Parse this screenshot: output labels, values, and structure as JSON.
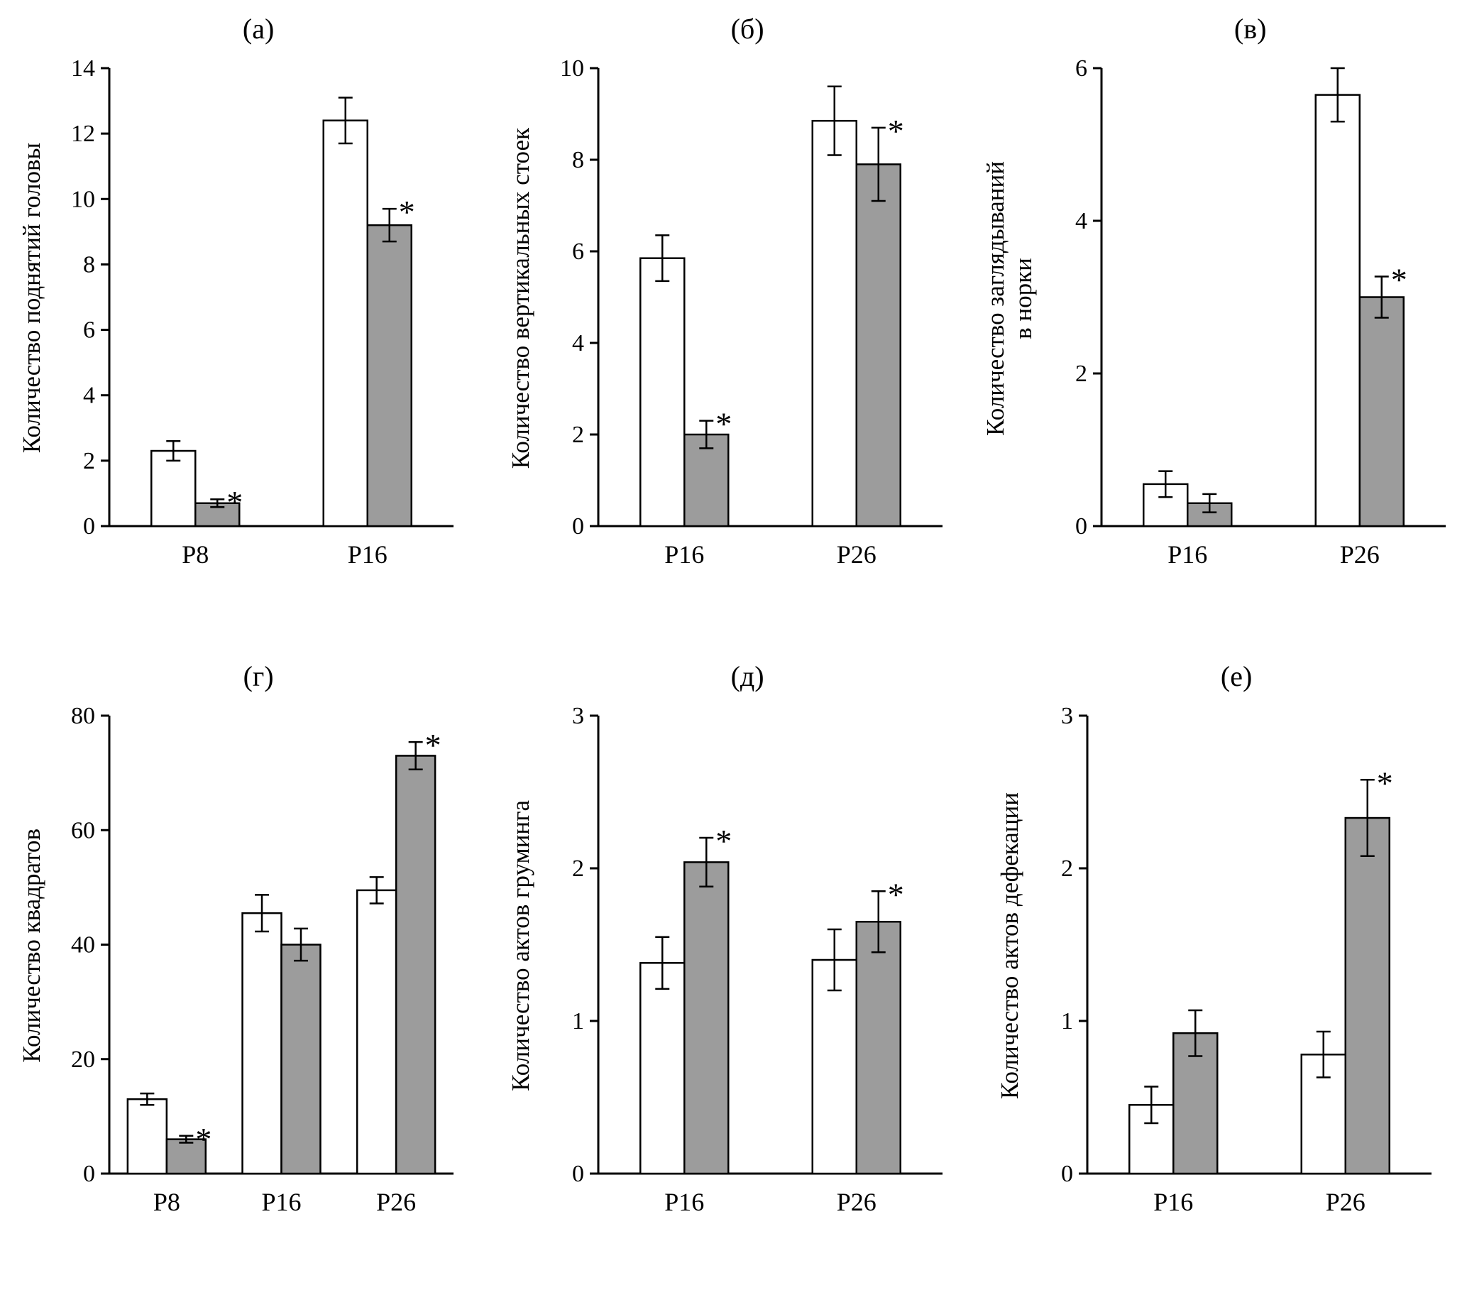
{
  "figure": {
    "background": "#ffffff",
    "axis_color": "#000000",
    "bar_outline": "#000000",
    "significance_marker": "*"
  },
  "chart_data": [
    {
      "id": "a",
      "type": "bar",
      "title": "(а)",
      "ylabel": "Количество поднятий головы",
      "ylim": [
        0,
        14
      ],
      "yticks": [
        0,
        2,
        4,
        6,
        8,
        10,
        12,
        14
      ],
      "categories": [
        "P8",
        "P16"
      ],
      "grid": false,
      "legend": "none",
      "series": [
        {
          "name": "white",
          "color": "#ffffff",
          "values": [
            2.3,
            12.4
          ],
          "errors": [
            0.3,
            0.7
          ],
          "significant": [
            false,
            false
          ]
        },
        {
          "name": "gray",
          "color": "#9c9c9c",
          "values": [
            0.7,
            9.2
          ],
          "errors": [
            0.12,
            0.5
          ],
          "significant": [
            true,
            true
          ]
        }
      ]
    },
    {
      "id": "b",
      "type": "bar",
      "title": "(б)",
      "ylabel": "Количество вертикальных стоек",
      "ylim": [
        0,
        10
      ],
      "yticks": [
        0,
        2,
        4,
        6,
        8,
        10
      ],
      "categories": [
        "P16",
        "P26"
      ],
      "grid": false,
      "legend": "none",
      "series": [
        {
          "name": "white",
          "color": "#ffffff",
          "values": [
            5.85,
            8.85
          ],
          "errors": [
            0.5,
            0.75
          ],
          "significant": [
            false,
            false
          ]
        },
        {
          "name": "gray",
          "color": "#9c9c9c",
          "values": [
            2.0,
            7.9
          ],
          "errors": [
            0.3,
            0.8
          ],
          "significant": [
            true,
            true
          ]
        }
      ]
    },
    {
      "id": "v",
      "type": "bar",
      "title": "(в)",
      "ylabel": "Количество заглядываний\nв норки",
      "ylim": [
        0,
        6
      ],
      "yticks": [
        0,
        2,
        4,
        6
      ],
      "categories": [
        "P16",
        "P26"
      ],
      "grid": false,
      "legend": "none",
      "series": [
        {
          "name": "white",
          "color": "#ffffff",
          "values": [
            0.55,
            5.65
          ],
          "errors": [
            0.17,
            0.35
          ],
          "significant": [
            false,
            false
          ]
        },
        {
          "name": "gray",
          "color": "#9c9c9c",
          "values": [
            0.3,
            3.0
          ],
          "errors": [
            0.12,
            0.27
          ],
          "significant": [
            false,
            true
          ]
        }
      ]
    },
    {
      "id": "g",
      "type": "bar",
      "title": "(г)",
      "ylabel": "Количество квадратов",
      "ylim": [
        0,
        80
      ],
      "yticks": [
        0,
        20,
        40,
        60,
        80
      ],
      "categories": [
        "P8",
        "P16",
        "P26"
      ],
      "grid": false,
      "legend": "none",
      "series": [
        {
          "name": "white",
          "color": "#ffffff",
          "values": [
            13,
            45.5,
            49.5
          ],
          "errors": [
            1,
            3.2,
            2.3
          ],
          "significant": [
            false,
            false,
            false
          ]
        },
        {
          "name": "gray",
          "color": "#9c9c9c",
          "values": [
            6,
            40,
            73
          ],
          "errors": [
            0.6,
            2.8,
            2.4
          ],
          "significant": [
            true,
            false,
            true
          ]
        }
      ]
    },
    {
      "id": "d",
      "type": "bar",
      "title": "(д)",
      "ylabel": "Количество актов груминга",
      "ylim": [
        0,
        3
      ],
      "yticks": [
        0,
        1,
        2,
        3
      ],
      "categories": [
        "P16",
        "P26"
      ],
      "grid": false,
      "legend": "none",
      "series": [
        {
          "name": "white",
          "color": "#ffffff",
          "values": [
            1.38,
            1.4
          ],
          "errors": [
            0.17,
            0.2
          ],
          "significant": [
            false,
            false
          ]
        },
        {
          "name": "gray",
          "color": "#9c9c9c",
          "values": [
            2.04,
            1.65
          ],
          "errors": [
            0.16,
            0.2
          ],
          "significant": [
            true,
            true
          ]
        }
      ]
    },
    {
      "id": "e",
      "type": "bar",
      "title": "(е)",
      "ylabel": "Количество актов дефекации",
      "ylim": [
        0,
        3
      ],
      "yticks": [
        0,
        1,
        2,
        3
      ],
      "categories": [
        "P16",
        "P26"
      ],
      "grid": false,
      "legend": "none",
      "series": [
        {
          "name": "white",
          "color": "#ffffff",
          "values": [
            0.45,
            0.78
          ],
          "errors": [
            0.12,
            0.15
          ],
          "significant": [
            false,
            false
          ]
        },
        {
          "name": "gray",
          "color": "#9c9c9c",
          "values": [
            0.92,
            2.33
          ],
          "errors": [
            0.15,
            0.25
          ],
          "significant": [
            false,
            true
          ]
        }
      ]
    }
  ]
}
